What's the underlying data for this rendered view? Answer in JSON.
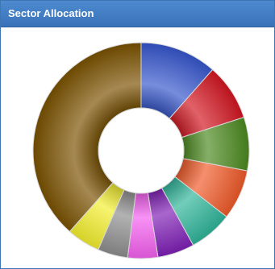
{
  "panel": {
    "title": "Sector Allocation"
  },
  "chart_data": {
    "type": "pie",
    "donut": true,
    "title": "Sector Allocation",
    "legend": "none",
    "slices": [
      {
        "value": 11.5,
        "color": "#3556cc"
      },
      {
        "value": 8.5,
        "color": "#d31621"
      },
      {
        "value": 8.0,
        "color": "#4c8a1f"
      },
      {
        "value": 7.5,
        "color": "#f05a28"
      },
      {
        "value": 6.5,
        "color": "#2fb69a"
      },
      {
        "value": 5.5,
        "color": "#7f1fb6"
      },
      {
        "value": 4.5,
        "color": "#f55ff0"
      },
      {
        "value": 4.5,
        "color": "#8e8e8e"
      },
      {
        "value": 5.0,
        "color": "#f3ef2e"
      },
      {
        "value": 38.5,
        "color": "#7a5200"
      }
    ]
  }
}
